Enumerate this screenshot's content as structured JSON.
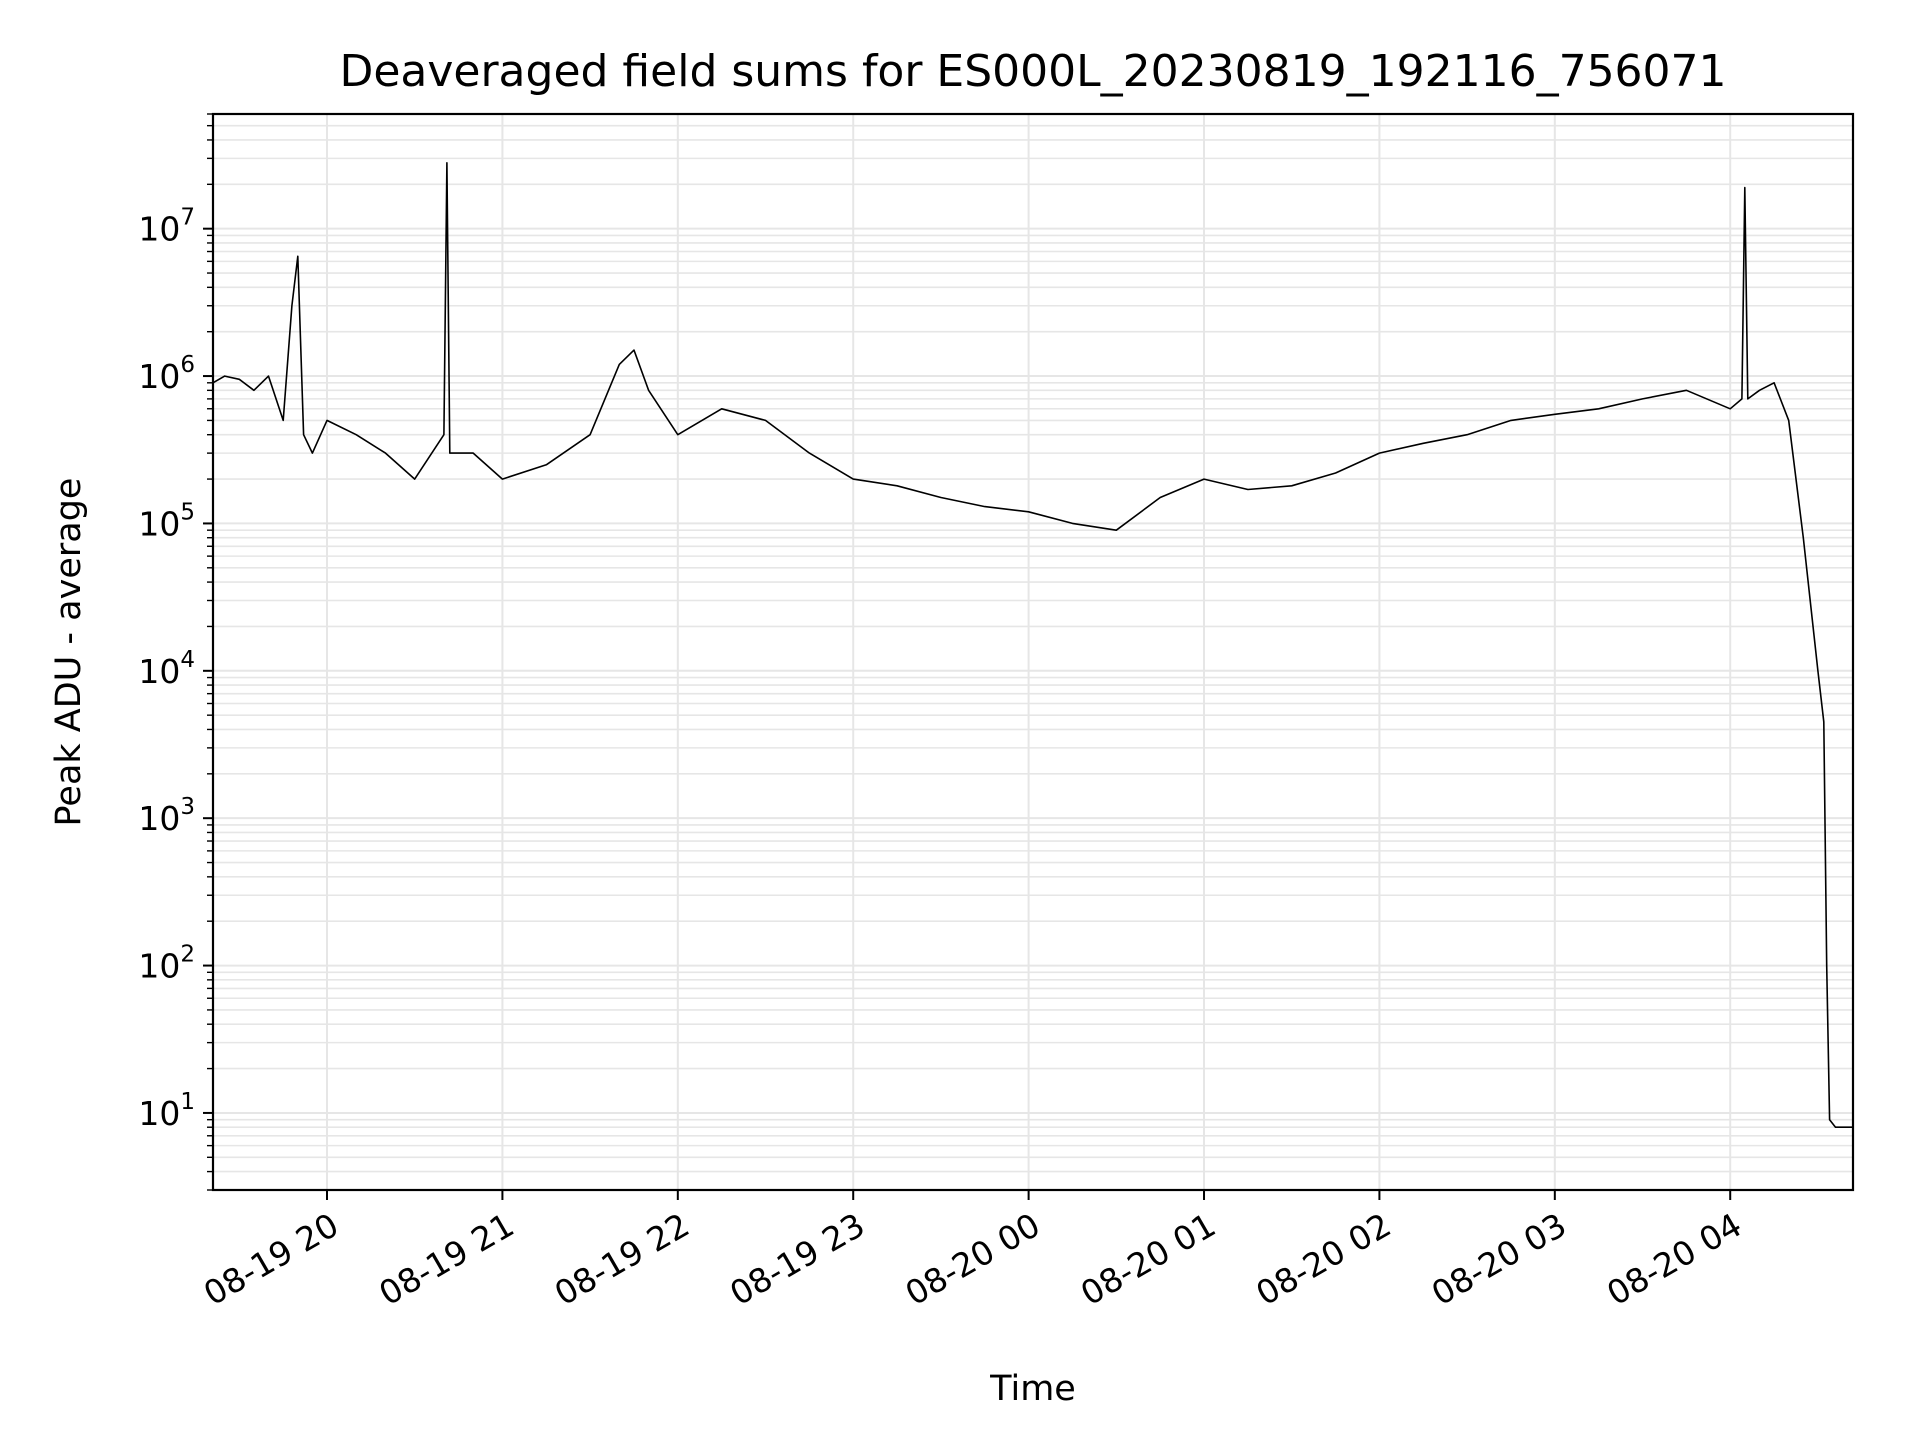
{
  "chart_data": {
    "type": "line",
    "title": "Deaveraged field sums for ES000L_20230819_192116_756071",
    "xlabel": "Time",
    "ylabel": "Peak ADU - average",
    "yscale": "log",
    "ylim": [
      3,
      60000000
    ],
    "xlim": [
      "2023-08-19 19:21",
      "2023-08-20 04:42"
    ],
    "grid": true,
    "x_ticks": [
      "08-19 20",
      "08-19 21",
      "08-19 22",
      "08-19 23",
      "08-20 00",
      "08-20 01",
      "08-20 02",
      "08-20 03",
      "08-20 04"
    ],
    "y_ticks": [
      {
        "base": "10",
        "exp": "1",
        "value": 10
      },
      {
        "base": "10",
        "exp": "2",
        "value": 100
      },
      {
        "base": "10",
        "exp": "3",
        "value": 1000
      },
      {
        "base": "10",
        "exp": "4",
        "value": 10000
      },
      {
        "base": "10",
        "exp": "5",
        "value": 100000
      },
      {
        "base": "10",
        "exp": "6",
        "value": 1000000
      },
      {
        "base": "10",
        "exp": "7",
        "value": 10000000
      }
    ],
    "line_color": "#000000",
    "grid_color": "#e6e6e6",
    "series": [
      {
        "x": [
          "2023-08-19 19:21",
          "2023-08-19 19:25",
          "2023-08-19 19:30",
          "2023-08-19 19:35",
          "2023-08-19 19:40",
          "2023-08-19 19:45",
          "2023-08-19 19:48",
          "2023-08-19 19:50",
          "2023-08-19 19:52",
          "2023-08-19 19:55",
          "2023-08-19 20:00",
          "2023-08-19 20:10",
          "2023-08-19 20:20",
          "2023-08-19 20:30",
          "2023-08-19 20:40",
          "2023-08-19 20:41",
          "2023-08-19 20:42",
          "2023-08-19 20:50",
          "2023-08-19 21:00",
          "2023-08-19 21:15",
          "2023-08-19 21:30",
          "2023-08-19 21:40",
          "2023-08-19 21:45",
          "2023-08-19 21:50",
          "2023-08-19 22:00",
          "2023-08-19 22:15",
          "2023-08-19 22:30",
          "2023-08-19 22:45",
          "2023-08-19 23:00",
          "2023-08-19 23:15",
          "2023-08-19 23:30",
          "2023-08-19 23:45",
          "2023-08-20 00:00",
          "2023-08-20 00:15",
          "2023-08-20 00:30",
          "2023-08-20 00:45",
          "2023-08-20 01:00",
          "2023-08-20 01:15",
          "2023-08-20 01:30",
          "2023-08-20 01:45",
          "2023-08-20 02:00",
          "2023-08-20 02:15",
          "2023-08-20 02:30",
          "2023-08-20 02:45",
          "2023-08-20 03:00",
          "2023-08-20 03:15",
          "2023-08-20 03:30",
          "2023-08-20 03:45",
          "2023-08-20 04:00",
          "2023-08-20 04:04",
          "2023-08-20 04:05",
          "2023-08-20 04:06",
          "2023-08-20 04:10",
          "2023-08-20 04:15",
          "2023-08-20 04:20",
          "2023-08-20 04:25",
          "2023-08-20 04:30",
          "2023-08-20 04:32",
          "2023-08-20 04:33",
          "2023-08-20 04:34",
          "2023-08-20 04:36",
          "2023-08-20 04:38",
          "2023-08-20 04:40",
          "2023-08-20 04:42"
        ],
        "y": [
          900000,
          1000000,
          950000,
          800000,
          1000000,
          500000,
          3000000,
          6500000,
          400000,
          300000,
          500000,
          400000,
          300000,
          200000,
          400000,
          28000000,
          300000,
          300000,
          200000,
          250000,
          400000,
          1200000,
          1500000,
          800000,
          400000,
          600000,
          500000,
          300000,
          200000,
          180000,
          150000,
          130000,
          120000,
          100000,
          90000,
          150000,
          200000,
          170000,
          180000,
          220000,
          300000,
          350000,
          400000,
          500000,
          550000,
          600000,
          700000,
          800000,
          600000,
          700000,
          19000000,
          700000,
          800000,
          900000,
          500000,
          80000,
          10000,
          4500,
          100,
          9,
          8,
          8,
          8,
          8
        ]
      }
    ]
  }
}
